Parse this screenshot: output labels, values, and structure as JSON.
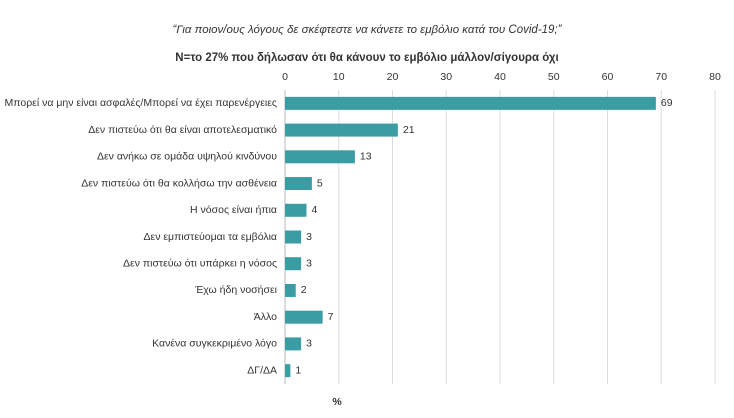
{
  "chart_data": {
    "type": "bar",
    "orientation": "horizontal",
    "title": "“Για ποιον/ους λόγους δε σκέφτεστε να κάνετε το εμβόλιο κατά του Covid-19;”",
    "subtitle": "Ν=το 27% που δήλωσαν ότι θα κάνουν το εμβόλιο μάλλον/σίγουρα όχι",
    "x_label": "%",
    "categories": [
      "Μπορεί να μην είναι ασφαλές/Μπορεί να έχει παρενέργειες",
      "Δεν πιστεύω ότι θα είναι αποτελεσματικό",
      "Δεν ανήκω σε ομάδα υψηλού κινδύνου",
      "Δεν πιστεύω ότι θα κολλήσω την ασθένεια",
      "Η νόσος είναι ήπια",
      "Δεν εμπιστεύομαι τα εμβόλια",
      "Δεν πιστεύω ότι υπάρκει η νόσος",
      "Έχω ήδη νοσήσει",
      "Άλλο",
      "Κανένα συγκεκριμένο λόγο",
      "ΔΓ/ΔΑ"
    ],
    "values": [
      69,
      21,
      13,
      5,
      4,
      3,
      3,
      2,
      7,
      3,
      1
    ],
    "color": "#3b9da3",
    "xlim": [
      0,
      80
    ],
    "xticks": [
      0,
      10,
      20,
      30,
      40,
      50,
      60,
      70,
      80
    ],
    "grid": true
  }
}
